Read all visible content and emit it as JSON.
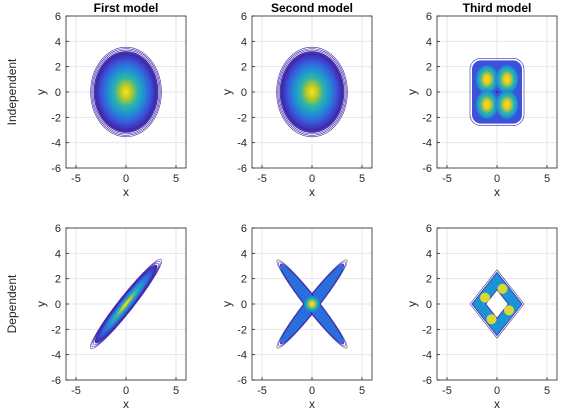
{
  "chart_data": {
    "type": "contour",
    "column_titles": [
      "First model",
      "Second model",
      "Third model"
    ],
    "row_titles": [
      "Independent",
      "Dependent"
    ],
    "xlabel": "x",
    "ylabel": "y",
    "xlim": [
      -6,
      6
    ],
    "ylim": [
      -6,
      6
    ],
    "xticks": [
      -5,
      0,
      5
    ],
    "yticks": [
      -6,
      -4,
      -2,
      0,
      2,
      4,
      6
    ],
    "grid": true,
    "colormap": "parula",
    "panels": [
      {
        "row": "Independent",
        "column": "First model",
        "shape": "disk",
        "center": [
          0,
          0
        ],
        "radius": 3.2
      },
      {
        "row": "Independent",
        "column": "Second model",
        "shape": "disk",
        "center": [
          0,
          0
        ],
        "radius": 3.2
      },
      {
        "row": "Independent",
        "column": "Third model",
        "shape": "four peaks",
        "peaks": [
          [
            -1,
            1
          ],
          [
            1,
            1
          ],
          [
            -1,
            -1
          ],
          [
            1,
            -1
          ]
        ],
        "extent": 2.5
      },
      {
        "row": "Dependent",
        "column": "First model",
        "shape": "ellipse along y = x",
        "extent": [
          -3,
          3
        ]
      },
      {
        "row": "Dependent",
        "column": "Second model",
        "shape": "cross along y = x and y = -x",
        "extent": [
          -3,
          3
        ]
      },
      {
        "row": "Dependent",
        "column": "Third model",
        "shape": "diamond ring",
        "vertices": [
          [
            0,
            2.5
          ],
          [
            2.5,
            0
          ],
          [
            0,
            -2.5
          ],
          [
            -2.5,
            0
          ]
        ]
      }
    ]
  }
}
